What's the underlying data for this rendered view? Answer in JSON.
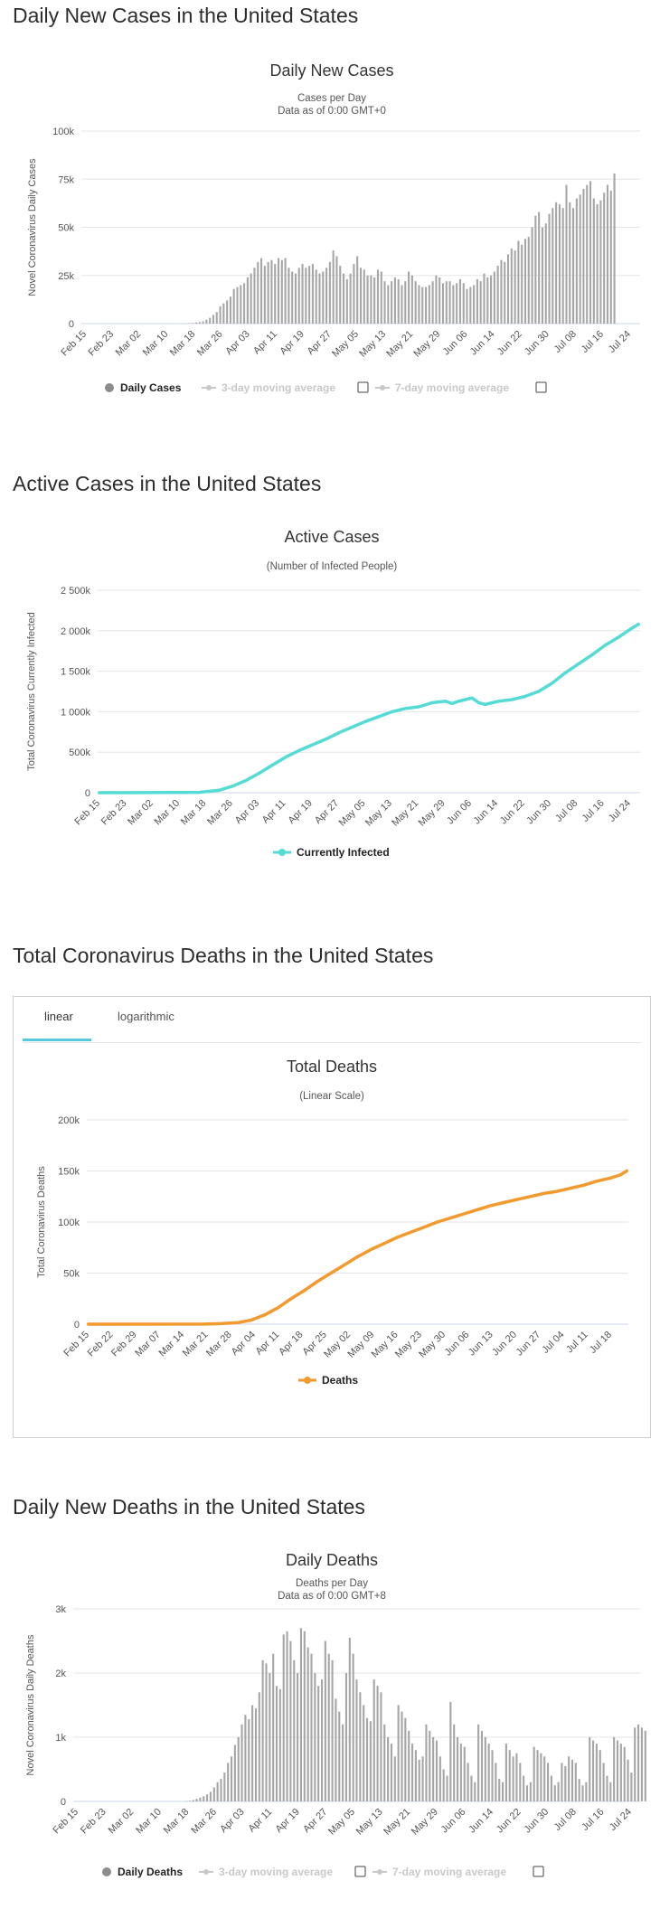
{
  "sections": {
    "new_cases": "Daily New Cases in the United States",
    "active": "Active Cases in the United States",
    "deaths": "Total Coronavirus Deaths in the United States",
    "daily_deaths": "Daily New Deaths in the United States"
  },
  "tabs": {
    "linear": "linear",
    "log": "logarithmic"
  },
  "colors": {
    "bar": "#a6a6a6",
    "active": "#55dbd6",
    "deaths": "#f29a2e",
    "tab_accent": "#55c9dd"
  },
  "chart_data": [
    {
      "type": "bar",
      "title": "Daily New Cases",
      "subtitle": "Cases per Day",
      "subtitle2": "Data as of 0:00 GMT+0",
      "ylabel": "Novel Coronavirus Daily Cases",
      "ylim": [
        0,
        100000
      ],
      "yticks": [
        "0",
        "25k",
        "50k",
        "75k",
        "100k"
      ],
      "ytick_values": [
        0,
        25000,
        50000,
        75000,
        100000
      ],
      "xticks": [
        "Feb 15",
        "Feb 23",
        "Mar 02",
        "Mar 10",
        "Mar 18",
        "Mar 26",
        "Apr 03",
        "Apr 11",
        "Apr 19",
        "Apr 27",
        "May 05",
        "May 13",
        "May 21",
        "May 29",
        "Jun 06",
        "Jun 14",
        "Jun 22",
        "Jun 30",
        "Jul 08",
        "Jul 16",
        "Jul 24"
      ],
      "legend": [
        "Daily Cases",
        "3-day moving average",
        "7-day moving average"
      ],
      "values": [
        0,
        0,
        0,
        0,
        0,
        0,
        0,
        0,
        0,
        0,
        0,
        0,
        0,
        0,
        0,
        0,
        0,
        0,
        0,
        0,
        0,
        0,
        0,
        0,
        0,
        0,
        0,
        0,
        0,
        50,
        100,
        200,
        300,
        500,
        800,
        1200,
        2000,
        3000,
        4500,
        6000,
        9000,
        10500,
        12000,
        14000,
        18000,
        19000,
        20000,
        21000,
        24000,
        26000,
        29000,
        32000,
        34000,
        30000,
        32000,
        33000,
        31000,
        34000,
        33000,
        34000,
        29000,
        27000,
        26000,
        29000,
        31000,
        29000,
        30000,
        31000,
        28000,
        26000,
        27000,
        29000,
        32000,
        38000,
        35000,
        30000,
        26000,
        23000,
        26000,
        31000,
        35000,
        29000,
        28000,
        25000,
        25000,
        24000,
        28000,
        27000,
        22000,
        20000,
        22000,
        24000,
        23000,
        20000,
        22000,
        27000,
        25000,
        22000,
        20000,
        19000,
        19000,
        20000,
        22000,
        25000,
        24000,
        21000,
        22000,
        22000,
        20000,
        21000,
        23000,
        21000,
        18000,
        19000,
        20000,
        23000,
        22000,
        26000,
        24000,
        25000,
        27000,
        30000,
        33000,
        32000,
        36000,
        39000,
        38000,
        43000,
        41000,
        44000,
        45000,
        50000,
        56000,
        58000,
        50000,
        52000,
        57000,
        60000,
        63000,
        62000,
        60000,
        72000,
        63000,
        60000,
        65000,
        67000,
        70000,
        72000,
        74000,
        65000,
        62000,
        64000,
        68000,
        72000,
        69000,
        78000
      ]
    },
    {
      "type": "line",
      "title": "Active Cases",
      "subtitle": "(Number of Infected People)",
      "ylabel": "Total Coronavirus Currently Infected",
      "ylim": [
        0,
        2500000
      ],
      "yticks": [
        "0",
        "500k",
        "1 000k",
        "1 500k",
        "2 000k",
        "2 500k"
      ],
      "ytick_values": [
        0,
        500000,
        1000000,
        1500000,
        2000000,
        2500000
      ],
      "xticks": [
        "Feb 15",
        "Feb 23",
        "Mar 02",
        "Mar 10",
        "Mar 18",
        "Mar 26",
        "Apr 03",
        "Apr 11",
        "Apr 19",
        "Apr 27",
        "May 05",
        "May 13",
        "May 21",
        "May 29",
        "Jun 06",
        "Jun 14",
        "Jun 22",
        "Jun 30",
        "Jul 08",
        "Jul 16",
        "Jul 24"
      ],
      "legend": [
        "Currently Infected"
      ],
      "x": [
        0,
        30,
        36,
        40,
        44,
        48,
        52,
        56,
        60,
        64,
        68,
        72,
        76,
        80,
        84,
        88,
        92,
        96,
        100,
        104,
        106,
        108,
        110,
        112,
        114,
        116,
        118,
        120,
        124,
        128,
        132,
        136,
        140,
        144,
        148,
        152,
        156,
        160,
        162
      ],
      "values": [
        0,
        5000,
        30000,
        80000,
        150000,
        240000,
        340000,
        440000,
        520000,
        590000,
        660000,
        740000,
        810000,
        880000,
        940000,
        1000000,
        1040000,
        1060000,
        1110000,
        1130000,
        1100000,
        1130000,
        1150000,
        1170000,
        1110000,
        1090000,
        1110000,
        1130000,
        1150000,
        1190000,
        1250000,
        1350000,
        1480000,
        1590000,
        1700000,
        1820000,
        1920000,
        2030000,
        2080000
      ]
    },
    {
      "type": "line",
      "title": "Total Deaths",
      "subtitle": "(Linear Scale)",
      "ylabel": "Total Coronavirus Deaths",
      "ylim": [
        0,
        200000
      ],
      "yticks": [
        "0",
        "50k",
        "100k",
        "150k",
        "200k"
      ],
      "ytick_values": [
        0,
        50000,
        100000,
        150000,
        200000
      ],
      "xticks": [
        "Feb 15",
        "Feb 22",
        "Feb 29",
        "Mar 07",
        "Mar 14",
        "Mar 21",
        "Mar 28",
        "Apr 04",
        "Apr 11",
        "Apr 18",
        "Apr 25",
        "May 02",
        "May 09",
        "May 16",
        "May 23",
        "May 30",
        "Jun 06",
        "Jun 13",
        "Jun 20",
        "Jun 27",
        "Jul 04",
        "Jul 11",
        "Jul 18"
      ],
      "legend": [
        "Deaths"
      ],
      "x": [
        0,
        35,
        40,
        45,
        49,
        53,
        57,
        61,
        65,
        69,
        73,
        77,
        81,
        85,
        89,
        93,
        97,
        101,
        105,
        109,
        113,
        117,
        121,
        125,
        129,
        133,
        137,
        141,
        145,
        149,
        153,
        157,
        160,
        162
      ],
      "values": [
        0,
        100,
        500,
        1500,
        4000,
        9000,
        16000,
        25000,
        33000,
        42000,
        50000,
        58000,
        66000,
        73000,
        79000,
        85000,
        90000,
        95000,
        100000,
        104000,
        108000,
        112000,
        116000,
        119000,
        122000,
        125000,
        128000,
        130000,
        133000,
        136000,
        140000,
        143000,
        146000,
        150000
      ]
    },
    {
      "type": "bar",
      "title": "Daily Deaths",
      "subtitle": "Deaths per Day",
      "subtitle2": "Data as of 0:00 GMT+8",
      "ylabel": "Novel Coronavirus Daily Deaths",
      "ylim": [
        0,
        3000
      ],
      "yticks": [
        "0",
        "1k",
        "2k",
        "3k"
      ],
      "ytick_values": [
        0,
        1000,
        2000,
        3000
      ],
      "xticks": [
        "Feb 15",
        "Feb 23",
        "Mar 02",
        "Mar 10",
        "Mar 18",
        "Mar 26",
        "Apr 03",
        "Apr 11",
        "Apr 19",
        "Apr 27",
        "May 05",
        "May 13",
        "May 21",
        "May 29",
        "Jun 06",
        "Jun 14",
        "Jun 22",
        "Jun 30",
        "Jul 08",
        "Jul 16",
        "Jul 24"
      ],
      "legend": [
        "Daily Deaths",
        "3-day moving average",
        "7-day moving average"
      ],
      "values": [
        0,
        0,
        0,
        0,
        0,
        0,
        0,
        0,
        0,
        0,
        0,
        0,
        0,
        0,
        0,
        0,
        0,
        0,
        0,
        0,
        0,
        0,
        0,
        0,
        0,
        0,
        0,
        0,
        0,
        0,
        0,
        0,
        5,
        10,
        20,
        40,
        60,
        80,
        110,
        150,
        220,
        300,
        350,
        450,
        600,
        700,
        880,
        1000,
        1200,
        1350,
        1280,
        1500,
        1450,
        1700,
        2200,
        2150,
        2000,
        2300,
        1800,
        1750,
        2600,
        2650,
        2500,
        2200,
        2000,
        2700,
        2650,
        2400,
        2300,
        2000,
        1800,
        1900,
        2500,
        2300,
        2200,
        1600,
        1400,
        1200,
        2000,
        2550,
        2300,
        1900,
        1700,
        1500,
        1300,
        1250,
        1900,
        1800,
        1700,
        1200,
        1000,
        900,
        700,
        1500,
        1400,
        1300,
        1100,
        900,
        800,
        650,
        700,
        1200,
        1100,
        1000,
        950,
        700,
        500,
        400,
        1550,
        1200,
        1000,
        900,
        850,
        600,
        400,
        300,
        1200,
        1100,
        1000,
        900,
        800,
        600,
        350,
        300,
        900,
        800,
        700,
        750,
        600,
        400,
        250,
        300,
        850,
        800,
        750,
        700,
        600,
        400,
        250,
        300,
        600,
        550,
        700,
        650,
        600,
        350,
        250,
        300,
        1000,
        950,
        900,
        800,
        600,
        400,
        300,
        1000,
        950,
        900,
        850,
        650,
        450,
        1150,
        1200,
        1150,
        1100
      ]
    }
  ]
}
